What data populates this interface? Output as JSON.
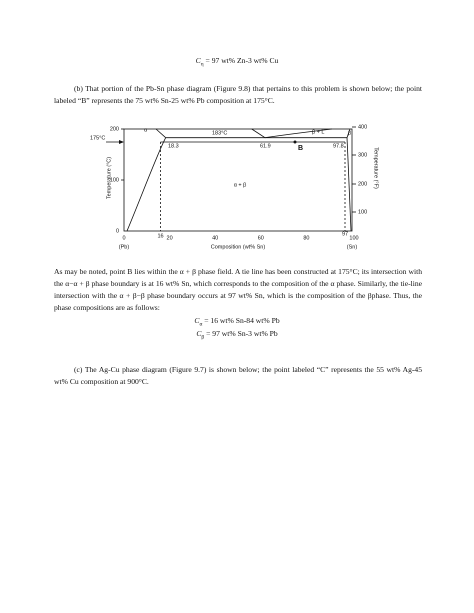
{
  "equation_top": {
    "symbol": "C",
    "subscript": "η",
    "rest": "= 97 wt% Zn-3 wt% Cu"
  },
  "paragraph_b": "(b) That portion of the Pb-Sn phase diagram (Figure 9.8) that pertains to this problem is shown below;  the point labeled “B” represents the 75 wt% Sn-25 wt% Pb composition at 175°C.",
  "figure": {
    "y_left_ticks": [
      "200",
      "100",
      "0"
    ],
    "y_left_label": "Temperature (°C)",
    "y_right_ticks": [
      "400",
      "300",
      "200",
      "100"
    ],
    "y_right_label": "Temperature (°F)",
    "x_ticks": [
      "0",
      "20",
      "40",
      "60",
      "80",
      "100"
    ],
    "x_end_labels": [
      "(Pb)",
      "(Sn)"
    ],
    "x_label": "Composition (wt% Sn)",
    "tie_temp": "175°C",
    "eutectic_temp": "183°C",
    "compositions": [
      "18.3",
      "61.9",
      "97.8"
    ],
    "tie_ends": [
      "16",
      "97"
    ],
    "phases": {
      "alpha": "α",
      "beta": "β",
      "alpha_beta": "α + β",
      "beta_l": "β + L"
    },
    "point": "B"
  },
  "paragraph_analysis": "As may be noted, point B lies within the α + β phase field.  A tie line has been constructed at 175°C;  its intersection with the α−α + β phase boundary is at 16 wt% Sn, which corresponds to the composition of the α phase.  Similarly, the tie-line intersection with the α + β−β phase boundary occurs at 97 wt% Sn, which is the composition of the βphase.  Thus, the phase compositions are as follows:",
  "equations": [
    {
      "symbol": "C",
      "subscript": "α",
      "rest": "= 16 wt% Sn-84 wt% Pb"
    },
    {
      "symbol": "C",
      "subscript": "β",
      "rest": "= 97 wt% Sn-3 wt% Pb"
    }
  ],
  "paragraph_c": "(c)  The Ag-Cu phase diagram (Figure 9.7) is shown below;  the point labeled “C” represents the 55 wt% Ag-45 wt% Cu composition at 900°C."
}
